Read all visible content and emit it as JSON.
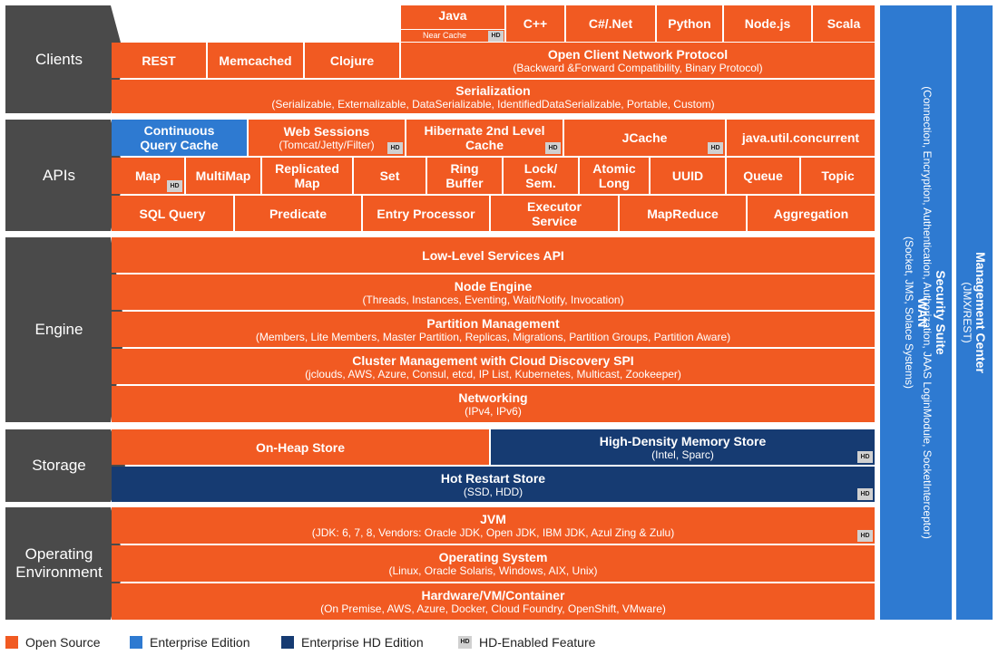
{
  "colors": {
    "open_source": "#f15a22",
    "enterprise": "#2e7ad1",
    "enterprise_hd": "#163b72",
    "layer_label": "#4a4a4a",
    "hd_badge": "#d0d0d0"
  },
  "hd_badge": "HD",
  "layers": {
    "clients": "Clients",
    "apis": "APIs",
    "engine": "Engine",
    "storage": "Storage",
    "os_line1": "Operating",
    "os_line2": "Environment"
  },
  "clients": {
    "java": "Java",
    "near_cache": "Near Cache",
    "cpp": "C++",
    "csharp": "C#/.Net",
    "python": "Python",
    "nodejs": "Node.js",
    "scala": "Scala",
    "rest": "REST",
    "memcached": "Memcached",
    "clojure": "Clojure",
    "ocnp_title": "Open Client Network Protocol",
    "ocnp_sub": "(Backward &Forward Compatibility, Binary Protocol)",
    "serialization_title": "Serialization",
    "serialization_sub": "(Serializable, Externalizable, DataSerializable, IdentifiedDataSerializable, Portable, Custom)"
  },
  "apis": {
    "cqc_l1": "Continuous",
    "cqc_l2": "Query Cache",
    "websessions_title": "Web Sessions",
    "websessions_sub": "(Tomcat/Jetty/Filter)",
    "hib_l1": "Hibernate 2nd Level",
    "hib_l2": "Cache",
    "jcache": "JCache",
    "juc": "java.util.concurrent",
    "map": "Map",
    "multimap": "MultiMap",
    "repl_l1": "Replicated",
    "repl_l2": "Map",
    "set": "Set",
    "ring_l1": "Ring",
    "ring_l2": "Buffer",
    "lock_l1": "Lock/",
    "lock_l2": "Sem.",
    "atomic_l1": "Atomic",
    "atomic_l2": "Long",
    "uuid": "UUID",
    "queue": "Queue",
    "topic": "Topic",
    "sql": "SQL Query",
    "predicate": "Predicate",
    "entry": "Entry Processor",
    "exec_l1": "Executor",
    "exec_l2": "Service",
    "mapreduce": "MapReduce",
    "aggregation": "Aggregation"
  },
  "engine": {
    "lowlevel": "Low-Level Services API",
    "node_title": "Node Engine",
    "node_sub": "(Threads, Instances, Eventing, Wait/Notify, Invocation)",
    "partition_title": "Partition Management",
    "partition_sub": "(Members, Lite Members, Master Partition, Replicas, Migrations, Partition Groups, Partition Aware)",
    "cluster_title": "Cluster Management with Cloud Discovery SPI",
    "cluster_sub": "(jclouds, AWS, Azure, Consul, etcd, IP List, Kubernetes, Multicast, Zookeeper)",
    "net_title": "Networking",
    "net_sub": "(IPv4, IPv6)"
  },
  "storage": {
    "onheap": "On-Heap Store",
    "hdms_title": "High-Density Memory Store",
    "hdms_sub": "(Intel, Sparc)",
    "hotrestart_title": "Hot Restart Store",
    "hotrestart_sub": "(SSD, HDD)"
  },
  "os": {
    "jvm_title": "JVM",
    "jvm_sub": "(JDK: 6, 7, 8, Vendors: Oracle JDK, Open JDK, IBM JDK, Azul Zing & Zulu)",
    "osys_title": "Operating System",
    "osys_sub": "(Linux, Oracle Solaris, Windows, AIX, Unix)",
    "hw_title": "Hardware/VM/Container",
    "hw_sub": "(On Premise, AWS, Azure, Docker, Cloud Foundry, OpenShift, VMware)"
  },
  "side": {
    "wan_title": "WAN",
    "wan_sub": "(Socket, JMS, Solace Systems)",
    "sec_title": "Security Suite",
    "sec_sub": "(Connection, Encryption, Authentication, Authorization, JAAS LoginModule, SocketInterceptor)",
    "mc_title": "Management Center",
    "mc_sub": "(JMX/REST)"
  },
  "legend": {
    "open_source": "Open Source",
    "enterprise": "Enterprise Edition",
    "enterprise_hd": "Enterprise HD Edition",
    "hd_feature": "HD-Enabled Feature"
  }
}
